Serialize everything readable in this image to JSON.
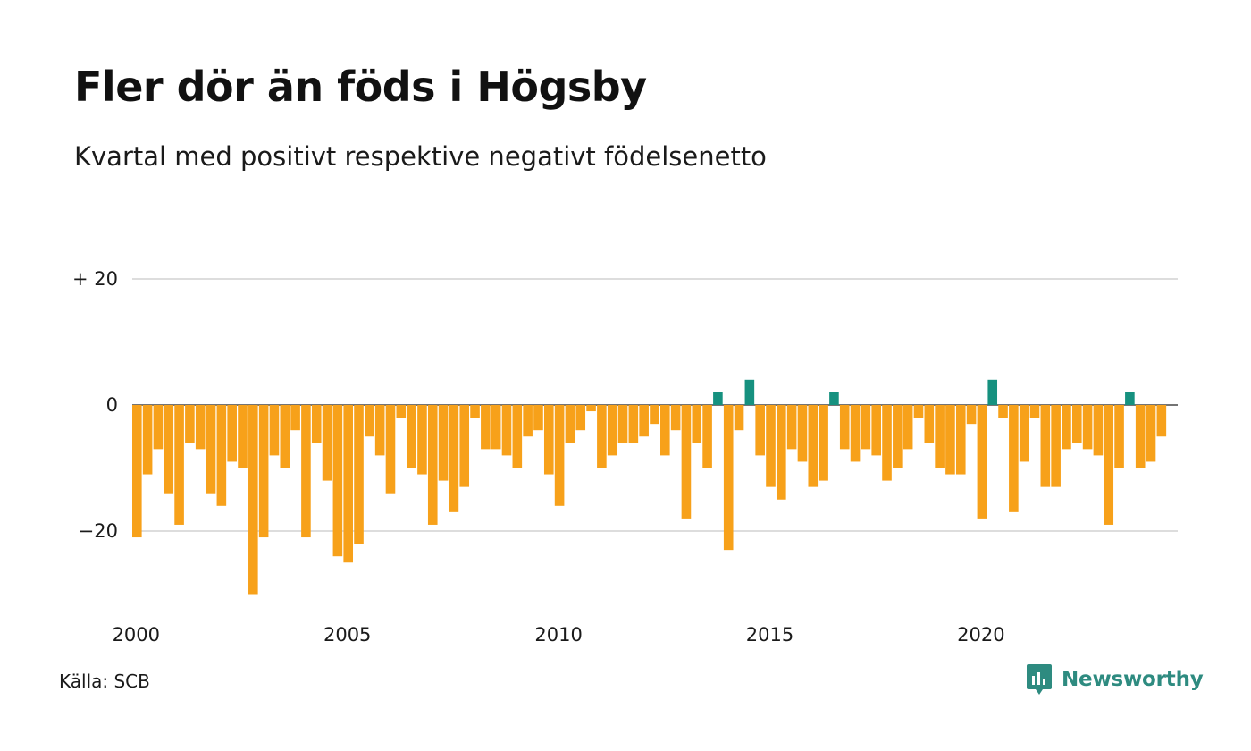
{
  "chart_data": {
    "type": "bar",
    "title": "Fler dör än föds i Högsby",
    "subtitle": "Kvartal med positivt respektive negativt födelsenetto",
    "source": "Källa: SCB",
    "x_ticks": [
      "2000",
      "2005",
      "2010",
      "2015",
      "2020"
    ],
    "y_ticks": [
      {
        "value": 20,
        "label": "+ 20"
      },
      {
        "value": 0,
        "label": "0"
      },
      {
        "value": -20,
        "label": "−20"
      }
    ],
    "ylim": [
      -30,
      20
    ],
    "start_year": 2000,
    "quarters_per_year": 4,
    "colors": {
      "positive": "#16917f",
      "negative": "#f7a11a",
      "grid": "#dddddd",
      "zero": "#222222"
    },
    "values": [
      -21,
      -11,
      -7,
      -14,
      -19,
      -6,
      -7,
      -14,
      -16,
      -9,
      -10,
      -30,
      -21,
      -8,
      -10,
      -4,
      -21,
      -6,
      -12,
      -24,
      -25,
      -22,
      -5,
      -8,
      -14,
      -2,
      -10,
      -11,
      -19,
      -12,
      -17,
      -13,
      -2,
      -7,
      -7,
      -8,
      -10,
      -5,
      -4,
      -11,
      -16,
      -6,
      -4,
      -1,
      -10,
      -8,
      -6,
      -6,
      -5,
      -3,
      -8,
      -4,
      -18,
      -6,
      -10,
      2,
      -23,
      -4,
      4,
      -8,
      -13,
      -15,
      -7,
      -9,
      -13,
      -12,
      2,
      -7,
      -9,
      -7,
      -8,
      -12,
      -10,
      -7,
      -2,
      -6,
      -10,
      -11,
      -11,
      -3,
      -18,
      4,
      -2,
      -17,
      -9,
      -2,
      -13,
      -13,
      -7,
      -6,
      -7,
      -8,
      -19,
      -10,
      2,
      -10,
      -9,
      -5
    ]
  },
  "brand": {
    "name": "Newsworthy",
    "icon": "newsworthy-logo-icon",
    "color": "#2e8b80"
  }
}
